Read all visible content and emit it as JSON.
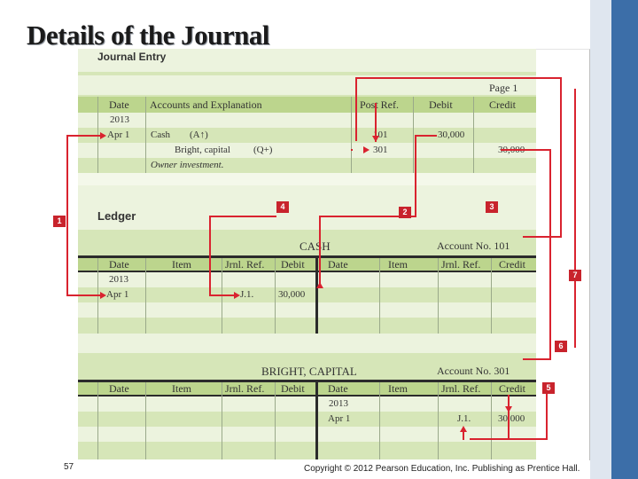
{
  "slide": {
    "title": "Details of the Journal",
    "page_number": "57",
    "copyright": "Copyright © 2012 Pearson Education, Inc. Publishing as Prentice Hall."
  },
  "journal": {
    "heading": "Journal Entry",
    "page": "Page 1",
    "columns": [
      "Date",
      "Accounts and Explanation",
      "Post Ref.",
      "Debit",
      "Credit"
    ],
    "year": "2013",
    "rows": [
      {
        "date": "Apr 1",
        "account": "Cash",
        "tag": "(A↑)",
        "ref": "101",
        "debit": "30,000",
        "credit": ""
      },
      {
        "date": "",
        "account": "Bright, capital",
        "tag": "(Q+)",
        "ref": "301",
        "debit": "",
        "credit": "30,000"
      }
    ],
    "explanation": "Owner investment."
  },
  "ledger": {
    "heading": "Ledger",
    "columns": [
      "Date",
      "Item",
      "Jrnl. Ref.",
      "Debit",
      "Date",
      "Item",
      "Jrnl. Ref.",
      "Credit"
    ],
    "cash": {
      "name": "CASH",
      "account": "Account No. 101",
      "year": "2013",
      "date": "Apr 1",
      "ref": "J.1.",
      "debit": "30,000"
    },
    "capital": {
      "name": "BRIGHT, CAPITAL",
      "account": "Account No. 301",
      "year": "2013",
      "date": "Apr 1",
      "ref": "J.1.",
      "credit": "30,000"
    }
  },
  "callouts": [
    "1",
    "2",
    "3",
    "4",
    "5",
    "6",
    "7"
  ],
  "colors": {
    "accent": "#d9232f",
    "header_green": "#bcd58d",
    "row_green": "#d6e6b8",
    "slide_bar": "#3c6ea8"
  }
}
